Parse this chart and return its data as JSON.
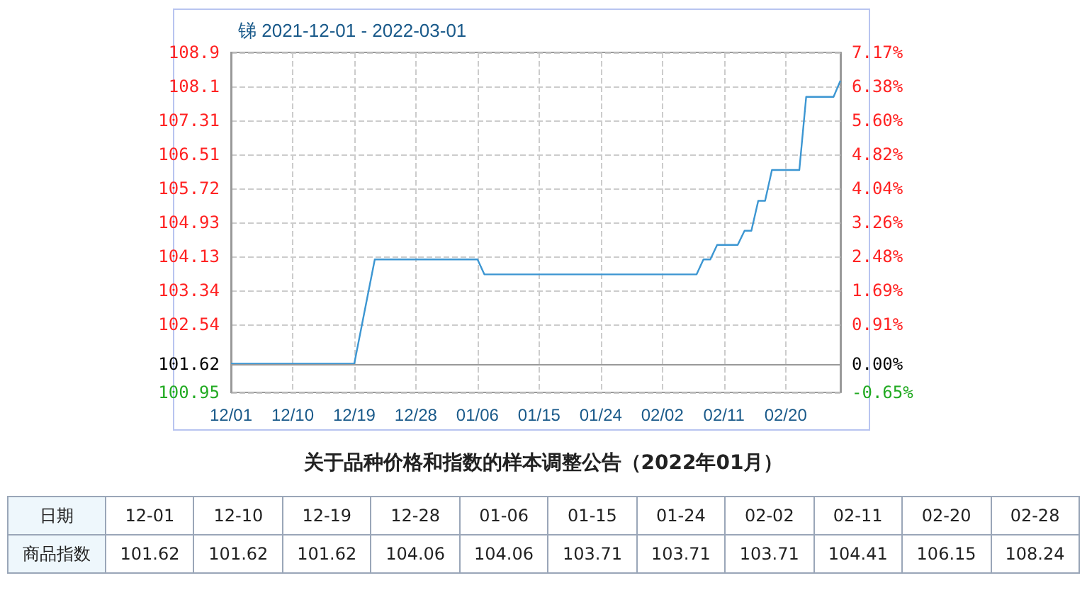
{
  "chart_data": [
    {
      "type": "line",
      "title": "锑 2021-12-01 - 2022-03-01",
      "x": [
        "2021-12-01",
        "2021-12-19",
        "2021-12-22",
        "2022-01-06",
        "2022-01-07",
        "2022-02-07",
        "2022-02-08",
        "2022-02-09",
        "2022-02-10",
        "2022-02-13",
        "2022-02-14",
        "2022-02-15",
        "2022-02-16",
        "2022-02-17",
        "2022-02-18",
        "2022-02-22",
        "2022-02-23",
        "2022-02-27",
        "2022-02-28"
      ],
      "series": [
        {
          "color": "#3c96d2",
          "values": [
            101.62,
            101.62,
            104.06,
            104.06,
            103.71,
            103.71,
            104.06,
            104.06,
            104.4,
            104.4,
            104.73,
            104.73,
            105.43,
            105.43,
            106.15,
            106.15,
            107.86,
            107.86,
            108.24
          ]
        }
      ],
      "xlim": [
        "2021-12-01",
        "2022-02-28"
      ],
      "xticks": [
        {
          "value": "2021-12-01",
          "label": "12/01"
        },
        {
          "value": "2021-12-10",
          "label": "12/10"
        },
        {
          "value": "2021-12-19",
          "label": "12/19"
        },
        {
          "value": "2021-12-28",
          "label": "12/28"
        },
        {
          "value": "2022-01-06",
          "label": "01/06"
        },
        {
          "value": "2022-01-15",
          "label": "01/15"
        },
        {
          "value": "2022-01-24",
          "label": "01/24"
        },
        {
          "value": "2022-02-02",
          "label": "02/02"
        },
        {
          "value": "2022-02-11",
          "label": "02/11"
        },
        {
          "value": "2022-02-20",
          "label": "02/20"
        }
      ],
      "ylim": [
        100.95,
        108.9
      ],
      "yticks": [
        100.95,
        101.62,
        102.54,
        103.34,
        104.13,
        104.93,
        105.72,
        106.51,
        107.31,
        108.1,
        108.9
      ],
      "y2lim": [
        -0.65,
        7.17
      ],
      "y2ticks": [
        {
          "value": -0.65,
          "label": "-0.65%"
        },
        {
          "value": 0,
          "label": "0.00%"
        },
        {
          "value": 0.91,
          "label": "0.91%"
        },
        {
          "value": 1.69,
          "label": "1.69%"
        },
        {
          "value": 2.48,
          "label": "2.48%"
        },
        {
          "value": 3.26,
          "label": "3.26%"
        },
        {
          "value": 4.04,
          "label": "4.04%"
        },
        {
          "value": 4.82,
          "label": "4.82%"
        },
        {
          "value": 5.6,
          "label": "5.60%"
        },
        {
          "value": 6.38,
          "label": "6.38%"
        },
        {
          "value": 7.17,
          "label": "7.17%"
        }
      ],
      "ref_lines": [
        {
          "axis": "y",
          "value": 101.62,
          "color": "#999999"
        }
      ],
      "grid": true,
      "marker": "none",
      "line_style": "solid"
    },
    {
      "type": "other",
      "title": "关于品种价格和指数的样本调整公告（2022年01月）",
      "xlabel": "日期",
      "ylabel": "商品指数",
      "categories": [
        "12-01",
        "12-10",
        "12-19",
        "12-28",
        "01-06",
        "01-15",
        "01-24",
        "02-02",
        "02-11",
        "02-20",
        "02-28"
      ],
      "values": [
        101.62,
        101.62,
        101.62,
        104.06,
        104.06,
        103.71,
        103.71,
        103.71,
        104.41,
        106.15,
        108.24
      ],
      "data_labels": true
    }
  ]
}
